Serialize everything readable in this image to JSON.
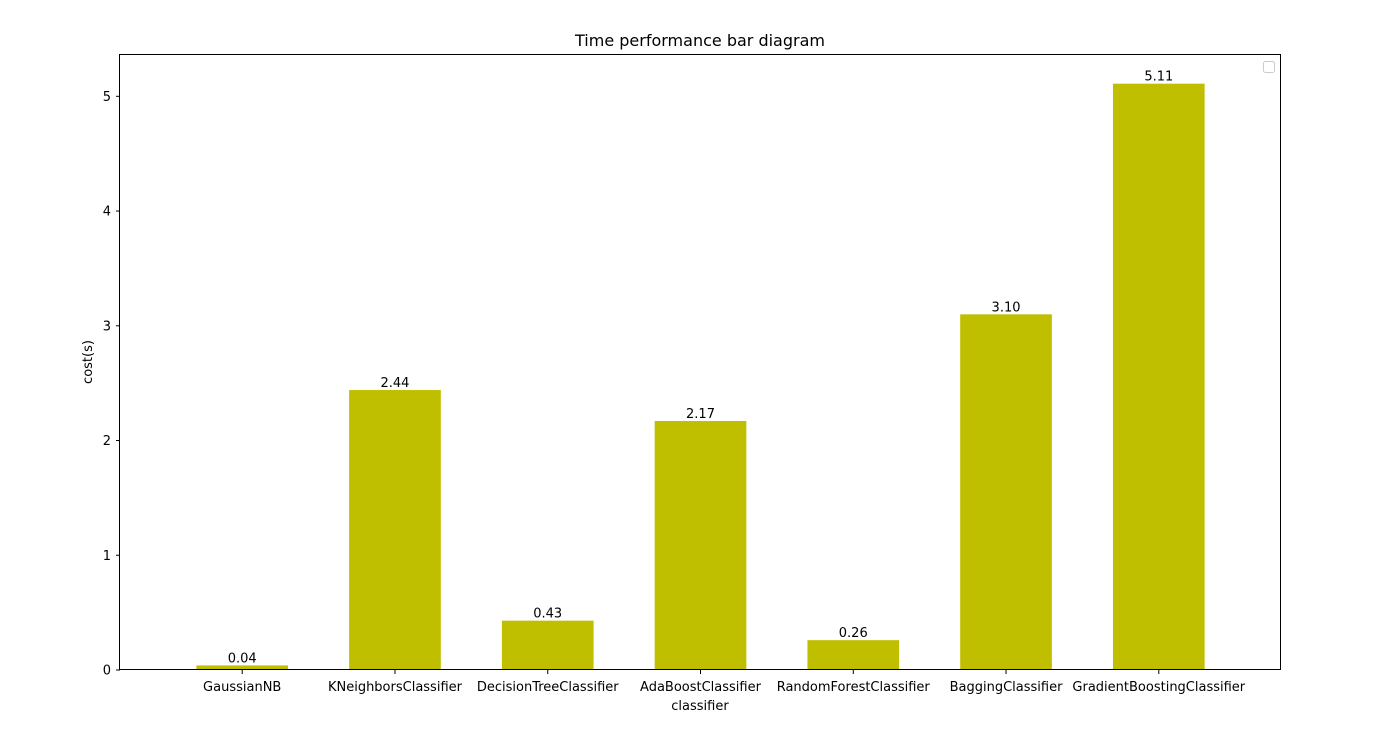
{
  "chart_data": {
    "type": "bar",
    "title": "Time performance bar diagram",
    "xlabel": "classifier",
    "ylabel": "cost(s)",
    "categories": [
      "GaussianNB",
      "KNeighborsClassifier",
      "DecisionTreeClassifier",
      "AdaBoostClassifier",
      "RandomForestClassifier",
      "BaggingClassifier",
      "GradientBoostingClassifier"
    ],
    "values": [
      0.04,
      2.44,
      0.43,
      2.17,
      0.26,
      3.1,
      5.11
    ],
    "value_labels": [
      "0.04",
      "2.44",
      "0.43",
      "2.17",
      "0.26",
      "3.10",
      "5.11"
    ],
    "ylim": [
      0,
      5.36
    ],
    "yticks": [
      0,
      1,
      2,
      3,
      4,
      5
    ],
    "grid": false,
    "legend": "upper right, empty",
    "bar_color": "#bfbf00"
  }
}
